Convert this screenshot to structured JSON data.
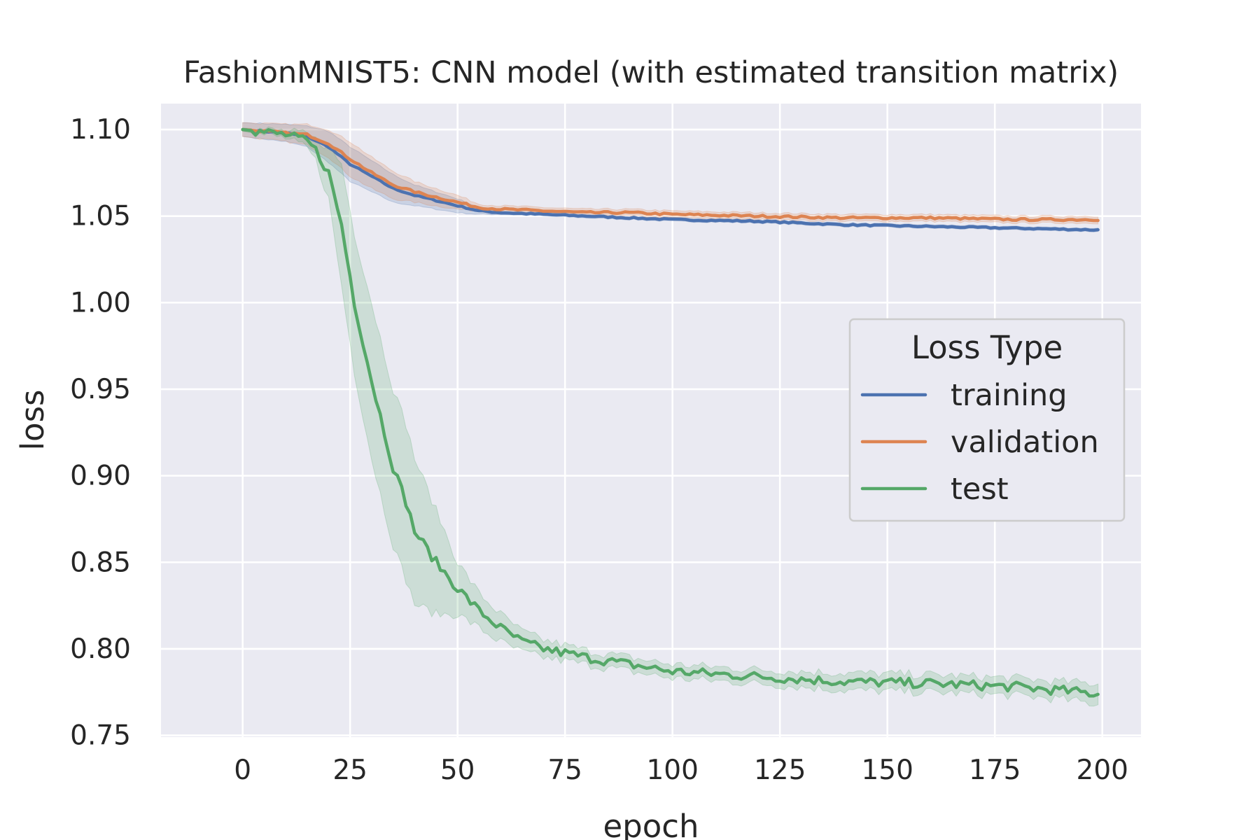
{
  "chart_data": {
    "type": "line",
    "title": "FashionMNIST5: CNN model (with estimated transition matrix)",
    "xlabel": "epoch",
    "ylabel": "loss",
    "xlim": [
      -19,
      209
    ],
    "ylim": [
      0.749,
      1.115
    ],
    "x_ticks": [
      0,
      25,
      50,
      75,
      100,
      125,
      150,
      175,
      200
    ],
    "y_ticks": [
      0.75,
      0.8,
      0.85,
      0.9,
      0.95,
      1.0,
      1.05,
      1.1
    ],
    "x_tick_labels": [
      "0",
      "25",
      "50",
      "75",
      "100",
      "125",
      "150",
      "175",
      "200"
    ],
    "y_tick_labels": [
      "0.75",
      "0.80",
      "0.85",
      "0.90",
      "0.95",
      "1.00",
      "1.05",
      "1.10"
    ],
    "grid": true,
    "legend": {
      "title": "Loss Type",
      "position": "center-right"
    },
    "x_range": [
      0,
      199
    ],
    "series": [
      {
        "name": "training",
        "color": "#4c72b0",
        "points": [
          [
            0,
            1.1
          ],
          [
            10,
            1.098
          ],
          [
            15,
            1.096
          ],
          [
            20,
            1.09
          ],
          [
            25,
            1.08
          ],
          [
            30,
            1.073
          ],
          [
            35,
            1.066
          ],
          [
            40,
            1.062
          ],
          [
            45,
            1.059
          ],
          [
            50,
            1.056
          ],
          [
            55,
            1.053
          ],
          [
            60,
            1.052
          ],
          [
            70,
            1.051
          ],
          [
            80,
            1.05
          ],
          [
            90,
            1.049
          ],
          [
            100,
            1.048
          ],
          [
            120,
            1.047
          ],
          [
            140,
            1.045
          ],
          [
            160,
            1.044
          ],
          [
            180,
            1.043
          ],
          [
            199,
            1.042
          ]
        ],
        "band": [
          0.004,
          0.005,
          0.006,
          0.009,
          0.01,
          0.009,
          0.008,
          0.006,
          0.005,
          0.004,
          0.002,
          0.001,
          0.001,
          0.001,
          0.001,
          0.001,
          0.001,
          0.001,
          0.001,
          0.001,
          0.001
        ],
        "noise": 0.0004
      },
      {
        "name": "validation",
        "color": "#dd8452",
        "points": [
          [
            0,
            1.1
          ],
          [
            10,
            1.098
          ],
          [
            15,
            1.097
          ],
          [
            20,
            1.092
          ],
          [
            25,
            1.083
          ],
          [
            30,
            1.075
          ],
          [
            35,
            1.068
          ],
          [
            40,
            1.064
          ],
          [
            45,
            1.061
          ],
          [
            50,
            1.058
          ],
          [
            55,
            1.055
          ],
          [
            60,
            1.054
          ],
          [
            70,
            1.053
          ],
          [
            80,
            1.052
          ],
          [
            90,
            1.052
          ],
          [
            100,
            1.051
          ],
          [
            120,
            1.05
          ],
          [
            140,
            1.049
          ],
          [
            160,
            1.049
          ],
          [
            180,
            1.048
          ],
          [
            199,
            1.048
          ]
        ],
        "band": [
          0.004,
          0.005,
          0.006,
          0.008,
          0.01,
          0.009,
          0.008,
          0.006,
          0.005,
          0.004,
          0.002,
          0.002,
          0.002,
          0.002,
          0.002,
          0.002,
          0.002,
          0.002,
          0.002,
          0.002,
          0.002
        ],
        "noise": 0.0006
      },
      {
        "name": "test",
        "color": "#55a868",
        "points": [
          [
            0,
            1.1
          ],
          [
            10,
            1.097
          ],
          [
            15,
            1.093
          ],
          [
            17,
            1.088
          ],
          [
            20,
            1.075
          ],
          [
            23,
            1.045
          ],
          [
            26,
            1.0
          ],
          [
            30,
            0.955
          ],
          [
            35,
            0.905
          ],
          [
            38,
            0.885
          ],
          [
            40,
            0.868
          ],
          [
            45,
            0.85
          ],
          [
            50,
            0.835
          ],
          [
            55,
            0.822
          ],
          [
            60,
            0.812
          ],
          [
            65,
            0.804
          ],
          [
            70,
            0.8
          ],
          [
            80,
            0.795
          ],
          [
            90,
            0.791
          ],
          [
            100,
            0.787
          ],
          [
            120,
            0.784
          ],
          [
            140,
            0.781
          ],
          [
            160,
            0.78
          ],
          [
            180,
            0.778
          ],
          [
            190,
            0.776
          ],
          [
            199,
            0.774
          ]
        ],
        "band": [
          0.001,
          0.002,
          0.004,
          0.006,
          0.015,
          0.035,
          0.04,
          0.045,
          0.045,
          0.045,
          0.042,
          0.03,
          0.015,
          0.01,
          0.008,
          0.006,
          0.005,
          0.004,
          0.004,
          0.004,
          0.004,
          0.005,
          0.005,
          0.005,
          0.005,
          0.006
        ],
        "noise": 0.0028
      }
    ]
  }
}
